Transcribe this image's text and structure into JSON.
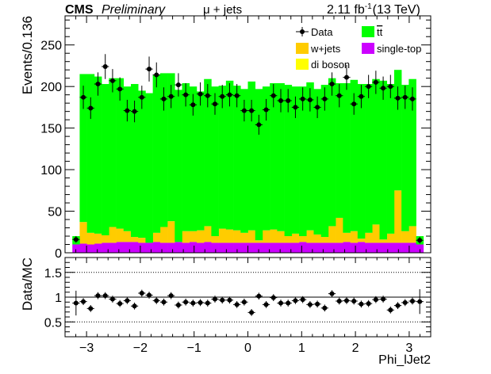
{
  "header": {
    "experiment": "CMS",
    "status": "Preliminary",
    "channel": "μ + jets",
    "lumi_value": "2.11 fb",
    "lumi_exp": "-1",
    "energy": "(13 TeV)"
  },
  "colors": {
    "ttbar": "#00ff00",
    "wjets": "#ffcc00",
    "diboson": "#ffff00",
    "singletop": "#cc00ff",
    "data": "#000000"
  },
  "chart_data": [
    {
      "type": "bar",
      "stacked": true,
      "title": "",
      "xlabel": "Phi_lJet2",
      "ylabel": "Events/0.136",
      "xlim": [
        -3.4,
        3.4
      ],
      "ylim": [
        0,
        285
      ],
      "x_ticks": [
        -3,
        -2,
        -1,
        0,
        1,
        2,
        3
      ],
      "y_ticks": [
        0,
        50,
        100,
        150,
        200,
        250
      ],
      "legend_position": "top-right",
      "legend": [
        {
          "label": "Data",
          "key": "data",
          "marker": "point"
        },
        {
          "label": "tt",
          "key": "ttbar",
          "marker": "box",
          "overline": true
        },
        {
          "label": "w+jets",
          "key": "wjets",
          "marker": "box"
        },
        {
          "label": "single-top",
          "key": "singletop",
          "marker": "box"
        },
        {
          "label": "di boson",
          "key": "diboson",
          "marker": "box"
        }
      ],
      "bin_edges": [
        -3.264,
        -3.128,
        -2.992,
        -2.856,
        -2.72,
        -2.584,
        -2.448,
        -2.312,
        -2.176,
        -2.04,
        -1.904,
        -1.768,
        -1.632,
        -1.496,
        -1.36,
        -1.224,
        -1.088,
        -0.952,
        -0.816,
        -0.68,
        -0.544,
        -0.408,
        -0.272,
        -0.136,
        0.0,
        0.136,
        0.272,
        0.408,
        0.544,
        0.68,
        0.816,
        0.952,
        1.088,
        1.224,
        1.36,
        1.496,
        1.632,
        1.768,
        1.904,
        2.04,
        2.176,
        2.312,
        2.448,
        2.584,
        2.72,
        2.856,
        2.992,
        3.128,
        3.264
      ],
      "x": [
        -3.196,
        -3.06,
        -2.924,
        -2.788,
        -2.652,
        -2.516,
        -2.38,
        -2.244,
        -2.108,
        -1.972,
        -1.836,
        -1.7,
        -1.564,
        -1.428,
        -1.292,
        -1.156,
        -1.02,
        -0.884,
        -0.748,
        -0.612,
        -0.476,
        -0.34,
        -0.204,
        -0.068,
        0.068,
        0.204,
        0.34,
        0.476,
        0.612,
        0.748,
        0.884,
        1.02,
        1.156,
        1.292,
        1.428,
        1.564,
        1.7,
        1.836,
        1.972,
        2.108,
        2.244,
        2.38,
        2.516,
        2.652,
        2.788,
        2.924,
        3.06,
        3.196
      ],
      "series": [
        {
          "name": "single-top",
          "key": "singletop",
          "values": [
            10,
            11,
            10,
            11,
            12,
            12,
            13,
            13,
            13,
            12,
            12,
            13,
            12,
            12,
            13,
            12,
            13,
            12,
            13,
            12,
            12,
            12,
            12,
            12,
            12,
            12,
            12,
            12,
            12,
            12,
            12,
            13,
            12,
            12,
            12,
            12,
            12,
            13,
            12,
            13,
            12,
            12,
            12,
            12,
            12,
            12,
            12,
            10
          ]
        },
        {
          "name": "di boson",
          "key": "diboson",
          "values": [
            0,
            0,
            0,
            0,
            0,
            0,
            0,
            0,
            0,
            0,
            0,
            0,
            0,
            0,
            0,
            0,
            0,
            0,
            0,
            0,
            0,
            0,
            0,
            0,
            0,
            0,
            0,
            0,
            0,
            0,
            0,
            0,
            0,
            0,
            0,
            0,
            0,
            0,
            0,
            0,
            0,
            0,
            0,
            0,
            0,
            0,
            0,
            0
          ]
        },
        {
          "name": "w+jets",
          "key": "wjets",
          "values": [
            0,
            26,
            14,
            12,
            9,
            19,
            16,
            13,
            6,
            6,
            0,
            11,
            19,
            26,
            0,
            14,
            13,
            15,
            19,
            8,
            17,
            16,
            15,
            12,
            15,
            3,
            15,
            16,
            14,
            8,
            11,
            7,
            15,
            10,
            7,
            20,
            30,
            11,
            14,
            4,
            12,
            22,
            4,
            11,
            63,
            14,
            20,
            0
          ]
        },
        {
          "name": "tt",
          "key": "ttbar",
          "values": [
            10,
            178,
            191,
            189,
            182,
            179,
            181,
            174,
            184,
            177,
            180,
            190,
            185,
            178,
            183,
            178,
            174,
            167,
            177,
            180,
            172,
            179,
            174,
            173,
            179,
            182,
            173,
            176,
            178,
            182,
            177,
            180,
            178,
            175,
            183,
            178,
            162,
            180,
            182,
            186,
            179,
            175,
            191,
            180,
            145,
            176,
            177,
            10
          ]
        }
      ],
      "data": {
        "name": "Data",
        "values": [
          16,
          187,
          174,
          203,
          224,
          207,
          197,
          171,
          170,
          187,
          221,
          214,
          185,
          188,
          202,
          190,
          178,
          191,
          189,
          179,
          188,
          190,
          189,
          171,
          171,
          154,
          172,
          189,
          183,
          183,
          175,
          185,
          184,
          175,
          185,
          203,
          189,
          211,
          179,
          188,
          200,
          205,
          198,
          200,
          186,
          187,
          185,
          15
        ],
        "errors": [
          4,
          14,
          13,
          14,
          15,
          14,
          14,
          13,
          13,
          14,
          15,
          15,
          14,
          14,
          14,
          14,
          13,
          14,
          14,
          13,
          14,
          14,
          14,
          13,
          13,
          12,
          13,
          14,
          14,
          14,
          13,
          14,
          14,
          13,
          14,
          14,
          14,
          15,
          13,
          14,
          14,
          14,
          14,
          14,
          14,
          14,
          14,
          4
        ]
      }
    },
    {
      "type": "scatter",
      "title": "",
      "xlabel": "Phi_lJet2",
      "ylabel": "Data/MC",
      "xlim": [
        -3.4,
        3.4
      ],
      "ylim": [
        0.2,
        1.8
      ],
      "x_ticks": [
        -3,
        -2,
        -1,
        0,
        1,
        2,
        3
      ],
      "y_ticks": [
        0.5,
        1,
        1.5
      ],
      "y_tick_labels": [
        "0.5",
        "1",
        "1.5"
      ],
      "reference_lines": [
        0.5,
        1.0,
        1.5
      ],
      "x": [
        -3.196,
        -3.06,
        -2.924,
        -2.788,
        -2.652,
        -2.516,
        -2.38,
        -2.244,
        -2.108,
        -1.972,
        -1.836,
        -1.7,
        -1.564,
        -1.428,
        -1.292,
        -1.156,
        -1.02,
        -0.884,
        -0.748,
        -0.612,
        -0.476,
        -0.34,
        -0.204,
        -0.068,
        0.068,
        0.204,
        0.34,
        0.476,
        0.612,
        0.748,
        0.884,
        1.02,
        1.156,
        1.292,
        1.428,
        1.564,
        1.7,
        1.836,
        1.972,
        2.108,
        2.244,
        2.38,
        2.516,
        2.652,
        2.788,
        2.924,
        3.06,
        3.196
      ],
      "y": [
        0.88,
        0.91,
        0.77,
        1.03,
        1.03,
        0.96,
        0.87,
        0.93,
        0.82,
        1.08,
        1.04,
        0.93,
        0.9,
        1.03,
        0.84,
        0.9,
        0.88,
        0.89,
        0.88,
        0.96,
        0.94,
        0.94,
        0.85,
        0.9,
        0.69,
        1.02,
        0.85,
        0.99,
        0.88,
        0.88,
        0.93,
        0.95,
        0.85,
        0.86,
        0.78,
        1.07,
        0.92,
        0.93,
        0.92,
        0.86,
        0.87,
        0.95,
        0.96,
        0.74,
        0.83,
        0.89,
        0.92,
        0.91
      ],
      "errors": [
        0.25,
        0.07,
        0.07,
        0.07,
        0.07,
        0.07,
        0.07,
        0.07,
        0.07,
        0.07,
        0.07,
        0.07,
        0.07,
        0.07,
        0.07,
        0.07,
        0.07,
        0.07,
        0.07,
        0.07,
        0.07,
        0.07,
        0.07,
        0.07,
        0.07,
        0.07,
        0.07,
        0.07,
        0.07,
        0.07,
        0.07,
        0.07,
        0.07,
        0.07,
        0.07,
        0.07,
        0.07,
        0.07,
        0.07,
        0.07,
        0.07,
        0.07,
        0.07,
        0.07,
        0.07,
        0.07,
        0.07,
        0.25
      ]
    }
  ]
}
